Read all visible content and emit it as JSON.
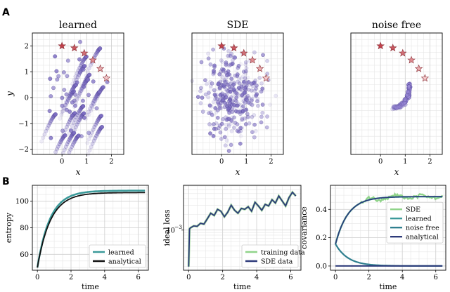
{
  "panel_letters": {
    "top": "A",
    "bottom": "B"
  },
  "chart_data": [
    {
      "id": "learned",
      "type": "scatter",
      "title": "learned",
      "xlabel": "x",
      "ylabel": "y",
      "xlim": [
        -1.2,
        2.5
      ],
      "ylim": [
        -2.2,
        2.5
      ],
      "xticks": [
        0,
        1,
        2
      ],
      "yticks": [
        -2,
        -1,
        0,
        1,
        2
      ],
      "x_tick_labels": [
        "0",
        "1",
        "2"
      ],
      "y_tick_labels": [
        "−2",
        "−1",
        "0",
        "1",
        "2"
      ],
      "grid": true,
      "point_color": "#7b6cc1",
      "stars": {
        "x": [
          0,
          0.5,
          0.9,
          1.25,
          1.55,
          1.8
        ],
        "y": [
          2.0,
          1.92,
          1.72,
          1.45,
          1.12,
          0.75
        ]
      },
      "star_colors": [
        "#c0404a",
        "#c8575f",
        "#d27077",
        "#de8d92",
        "#eaadb0",
        "#f3cacc"
      ],
      "pattern": "curved_trails"
    },
    {
      "id": "sde",
      "type": "scatter",
      "title": "SDE",
      "xlabel": "x",
      "ylabel": "",
      "xlim": [
        -1.2,
        2.5
      ],
      "ylim": [
        -2.2,
        2.5
      ],
      "xticks": [
        0,
        1,
        2
      ],
      "x_tick_labels": [
        "0",
        "1",
        "2"
      ],
      "grid": true,
      "point_color": "#7b6cc1",
      "stars": {
        "x": [
          0,
          0.5,
          0.9,
          1.25,
          1.55,
          1.8
        ],
        "y": [
          2.0,
          1.92,
          1.72,
          1.45,
          1.12,
          0.75
        ]
      },
      "star_colors": [
        "#c0404a",
        "#c8575f",
        "#d27077",
        "#de8d92",
        "#eaadb0",
        "#f3cacc"
      ],
      "pattern": "diffuse_cloud"
    },
    {
      "id": "noise_free",
      "type": "scatter",
      "title": "noise free",
      "xlabel": "x",
      "ylabel": "",
      "xlim": [
        -1.2,
        2.5
      ],
      "ylim": [
        -2.2,
        2.5
      ],
      "xticks": [
        0,
        1,
        2
      ],
      "x_tick_labels": [
        "0",
        "1",
        "2"
      ],
      "grid": true,
      "point_color": "#9a8ad6",
      "stars": {
        "x": [
          0,
          0.5,
          0.9,
          1.25,
          1.55,
          1.8
        ],
        "y": [
          2.0,
          1.92,
          1.72,
          1.45,
          1.12,
          0.75
        ]
      },
      "star_colors": [
        "#c0404a",
        "#c8575f",
        "#d27077",
        "#de8d92",
        "#eaadb0",
        "#f3cacc"
      ],
      "pattern": "single_arc"
    },
    {
      "id": "entropy",
      "type": "line",
      "xlabel": "time",
      "ylabel": "entropy",
      "xlim": [
        -0.3,
        6.6
      ],
      "ylim": [
        48,
        112
      ],
      "xticks": [
        0,
        2,
        4,
        6
      ],
      "yticks": [
        60,
        80,
        100
      ],
      "x_tick_labels": [
        "0",
        "2",
        "4",
        "6"
      ],
      "y_tick_labels": [
        "60",
        "80",
        "100"
      ],
      "grid": true,
      "legend": "lower-right",
      "series": [
        {
          "name": "learned",
          "color": "#3b9a9a",
          "y0": 50,
          "yinf": 108,
          "tau": 0.75
        },
        {
          "name": "analytical",
          "color": "#111111",
          "y0": 50,
          "yinf": 106.5,
          "tau": 0.78
        }
      ]
    },
    {
      "id": "ideal_loss",
      "type": "line",
      "xlabel": "time",
      "ylabel": "ideal loss",
      "yscale": "log",
      "xlim": [
        -0.3,
        6.6
      ],
      "ylim": [
        0.00017,
        0.0072
      ],
      "xticks": [
        0,
        2,
        4,
        6
      ],
      "x_tick_labels": [
        "0",
        "2",
        "4",
        "6"
      ],
      "y_tick_labels": [
        "10",
        "−3"
      ],
      "grid": true,
      "legend": "lower-right",
      "series": [
        {
          "name": "training data",
          "color": "#90d48a"
        },
        {
          "name": "SDE data",
          "color": "#2d3a7a",
          "x": [
            0,
            0.05,
            0.1,
            0.3,
            0.5,
            0.7,
            0.9,
            1.1,
            1.3,
            1.5,
            1.7,
            1.9,
            2.1,
            2.3,
            2.5,
            2.7,
            2.9,
            3.1,
            3.3,
            3.5,
            3.7,
            3.9,
            4.1,
            4.3,
            4.5,
            4.7,
            4.9,
            5.1,
            5.3,
            5.5,
            5.7,
            5.9,
            6.1,
            6.3
          ],
          "y": [
            0.0002,
            0.00105,
            0.0011,
            0.0012,
            0.00118,
            0.00135,
            0.0013,
            0.00165,
            0.0021,
            0.0019,
            0.0025,
            0.0023,
            0.0018,
            0.0022,
            0.003,
            0.0024,
            0.0021,
            0.0026,
            0.0025,
            0.0028,
            0.0023,
            0.0034,
            0.0029,
            0.0024,
            0.0031,
            0.0029,
            0.0038,
            0.0033,
            0.0045,
            0.0036,
            0.0029,
            0.0042,
            0.0053,
            0.0045
          ]
        }
      ]
    },
    {
      "id": "covariance",
      "type": "line",
      "xlabel": "time",
      "ylabel": "covariance",
      "xlim": [
        -0.3,
        6.6
      ],
      "ylim": [
        -0.03,
        0.57
      ],
      "xticks": [
        0,
        2,
        4,
        6
      ],
      "yticks": [
        0.0,
        0.2,
        0.4
      ],
      "x_tick_labels": [
        "0",
        "2",
        "4",
        "6"
      ],
      "y_tick_labels": [
        "0.0",
        "0.2",
        "0.4"
      ],
      "grid": true,
      "legend": "center-right",
      "series": [
        {
          "name": "SDE",
          "color": "#90d48a"
        },
        {
          "name": "learned",
          "color": "#3b9a9a"
        },
        {
          "name": "noise free",
          "color": "#2f7f8f"
        },
        {
          "name": "analytical",
          "color": "#2d3a7a"
        }
      ],
      "curves": {
        "y0": 0.155,
        "upper_inf": 0.49,
        "lower_inf": 0.0,
        "tau": 0.75
      }
    }
  ]
}
